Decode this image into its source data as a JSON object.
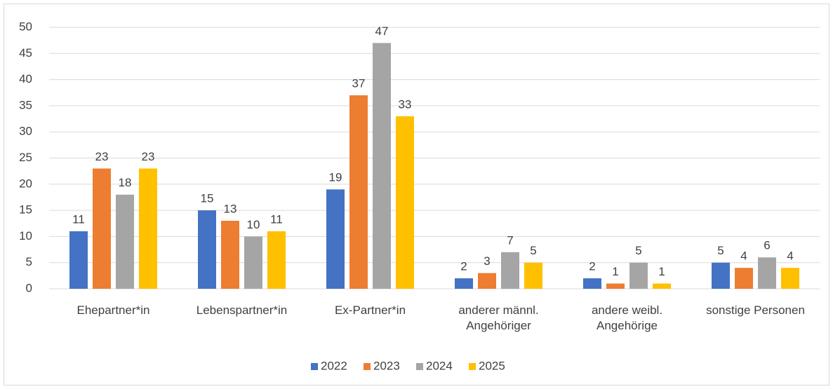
{
  "chart_data": {
    "type": "bar",
    "categories": [
      "Ehepartner*in",
      "Lebenspartner*in",
      "Ex-Partner*in",
      "anderer männl. Angehöriger",
      "andere weibl. Angehörige",
      "sonstige Personen"
    ],
    "series": [
      {
        "name": "2022",
        "color": "#4472c4",
        "values": [
          11,
          15,
          19,
          2,
          2,
          5
        ]
      },
      {
        "name": "2023",
        "color": "#ed7d31",
        "values": [
          23,
          13,
          37,
          3,
          1,
          4
        ]
      },
      {
        "name": "2024",
        "color": "#a5a5a5",
        "values": [
          18,
          10,
          47,
          7,
          5,
          6
        ]
      },
      {
        "name": "2025",
        "color": "#ffc000",
        "values": [
          23,
          11,
          33,
          5,
          1,
          4
        ]
      }
    ],
    "ylim": [
      0,
      50
    ],
    "yticks": [
      0,
      5,
      10,
      15,
      20,
      25,
      30,
      35,
      40,
      45,
      50
    ],
    "grid": true,
    "legend": "bottom"
  }
}
